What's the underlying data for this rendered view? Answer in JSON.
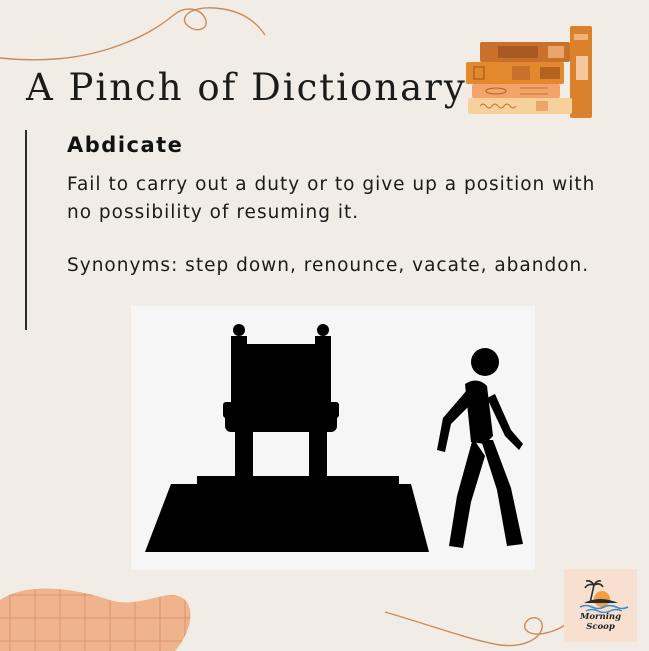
{
  "header": {
    "title": "A Pinch of Dictionary"
  },
  "entry": {
    "word": "Abdicate",
    "definition": "Fail to carry out a duty or to give up a position with no possibility of resuming it.",
    "synonyms": "Synonyms: step down, renounce, vacate, abandon."
  },
  "illustration": {
    "description_icon": "throne-and-walking-person-icon"
  },
  "logo": {
    "line1": "Morning",
    "line2": "Scoop"
  },
  "colors": {
    "background": "#f1ede6",
    "accent_line": "#c98a5a",
    "blob": "#efb48c",
    "silhouette": "#000000"
  }
}
